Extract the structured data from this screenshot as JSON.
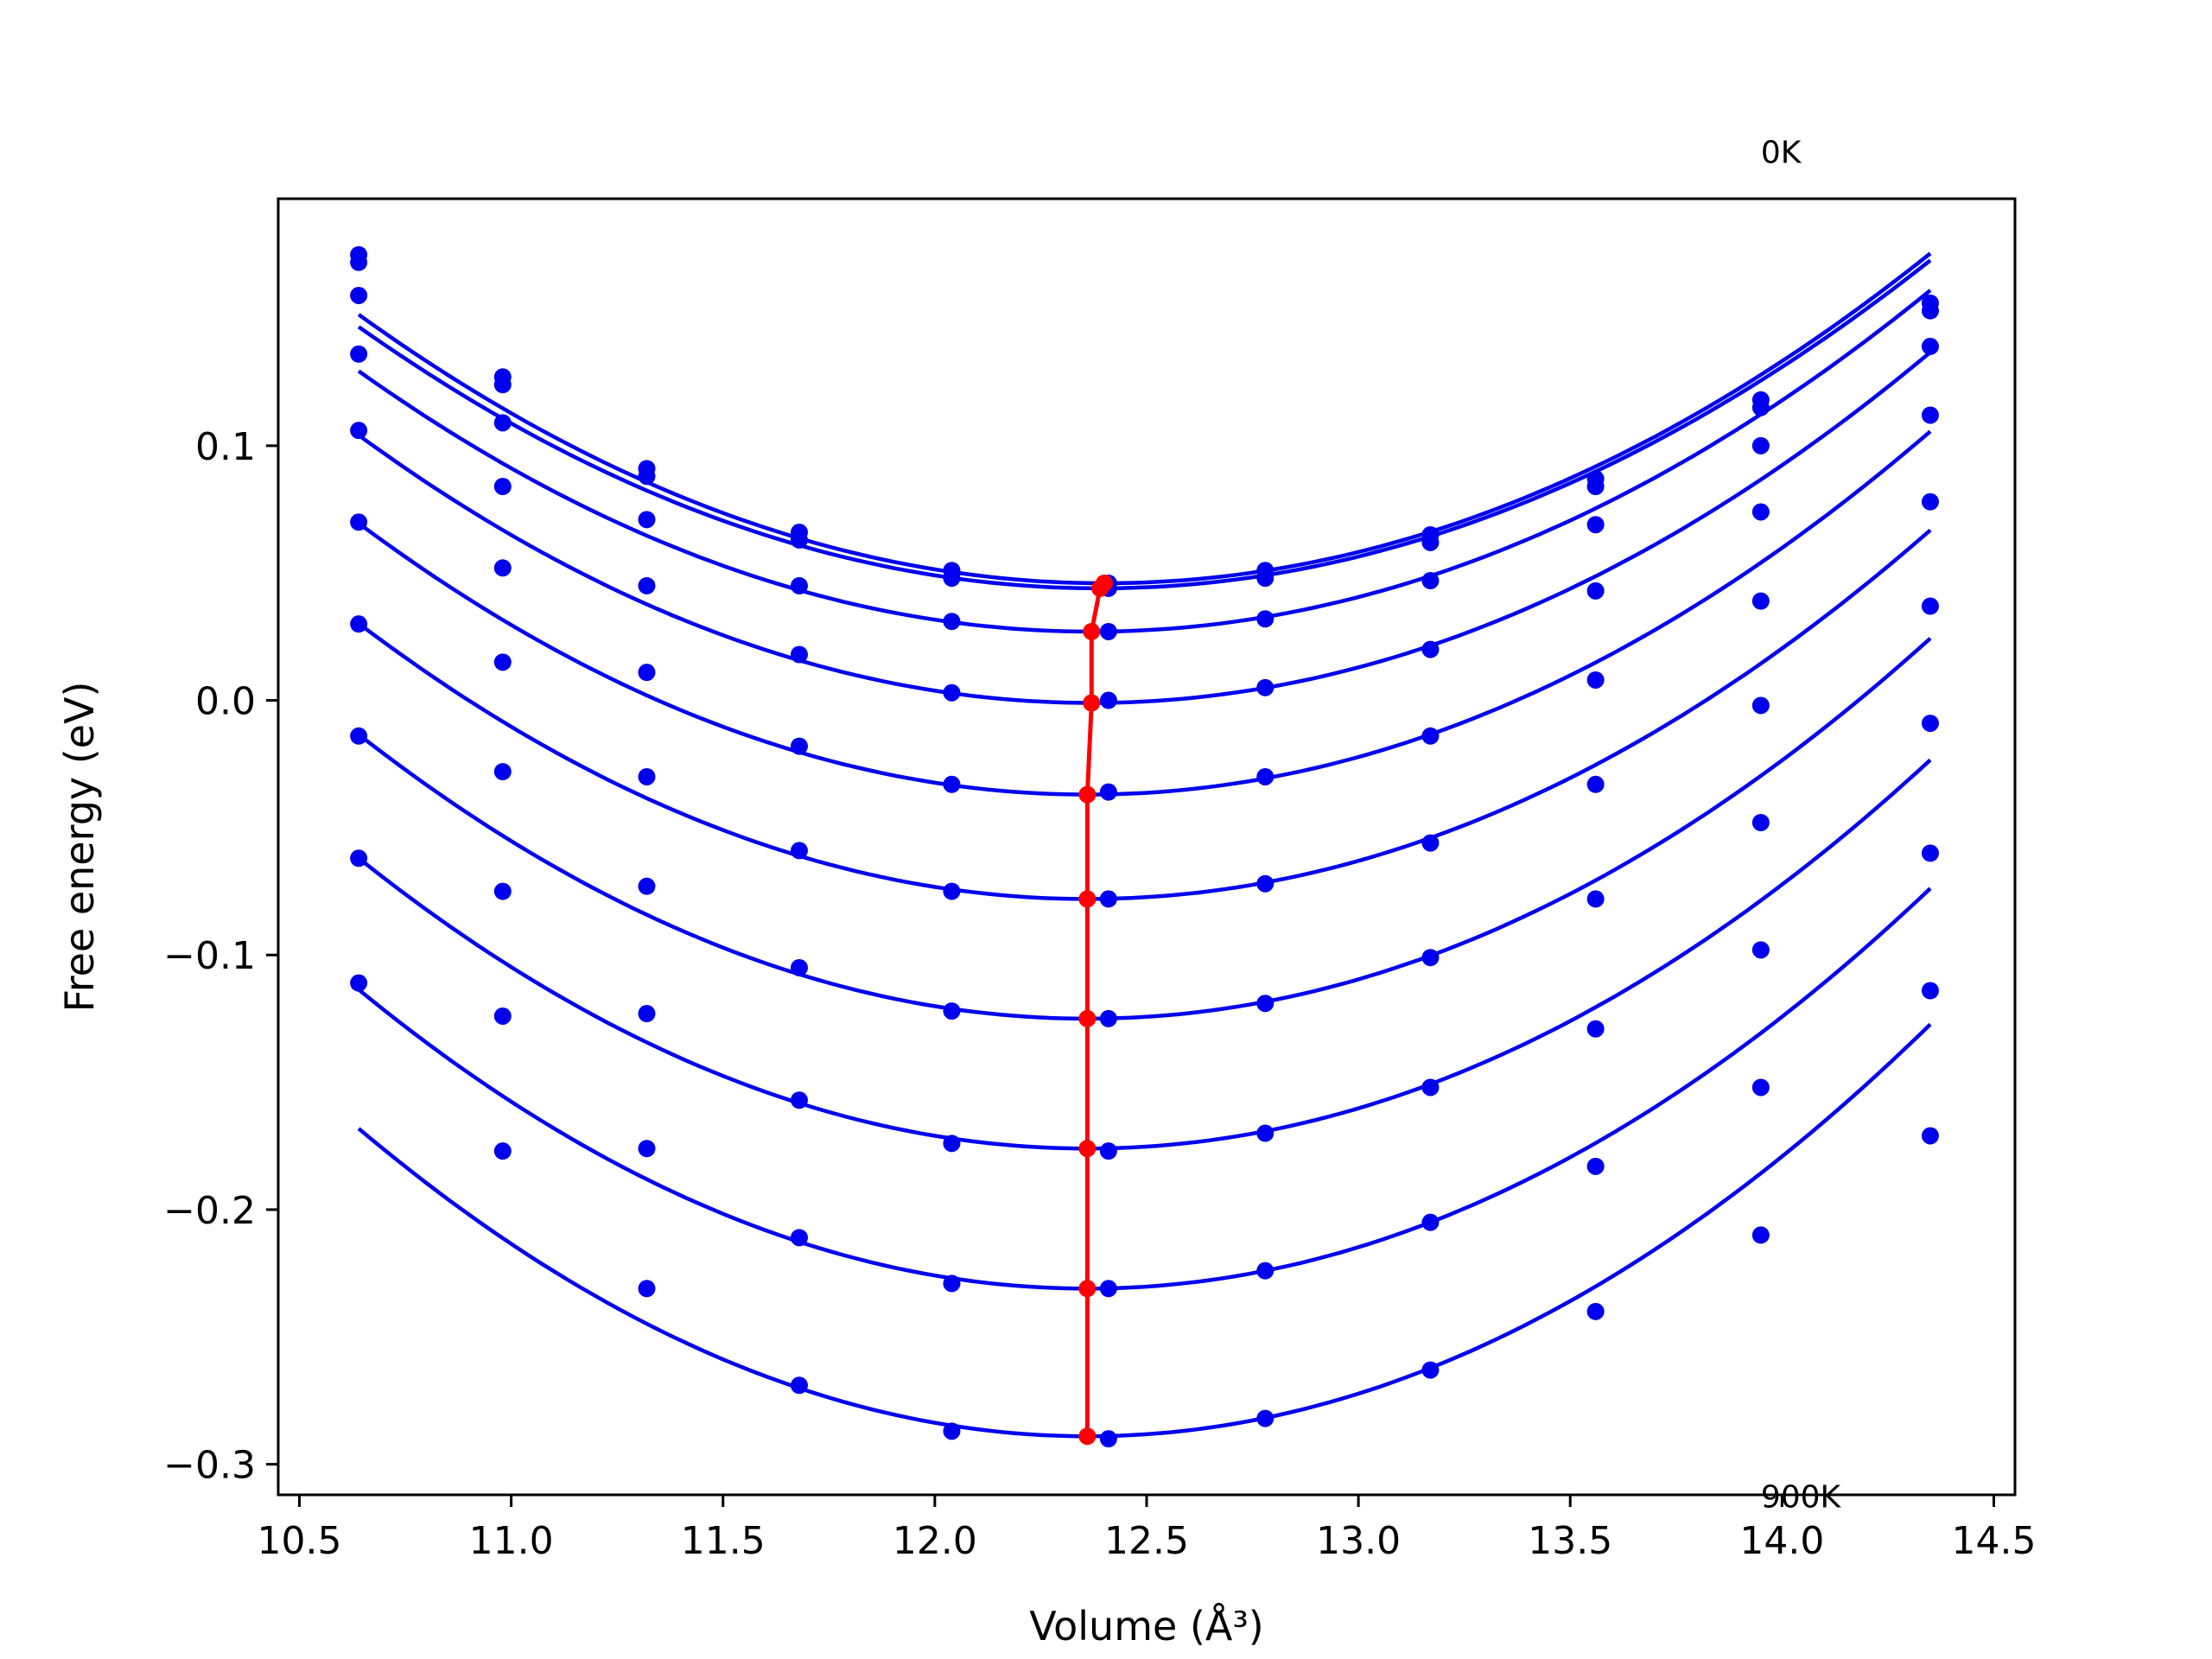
{
  "chart_data": {
    "type": "line",
    "xlabel": "Volume (Å³)",
    "ylabel": "Free energy (eV)",
    "xlim": [
      10.45,
      14.55
    ],
    "ylim": [
      -0.312,
      0.197
    ],
    "x_ticks": [
      10.5,
      11.0,
      11.5,
      12.0,
      12.5,
      13.0,
      13.5,
      14.0,
      14.5
    ],
    "x_tick_labels": [
      "10.5",
      "11.0",
      "11.5",
      "12.0",
      "12.5",
      "13.0",
      "13.5",
      "14.0",
      "14.5"
    ],
    "y_ticks": [
      -0.3,
      -0.2,
      -0.1,
      0.0,
      0.1
    ],
    "y_tick_labels": [
      "−0.3",
      "−0.2",
      "−0.1",
      "0.0",
      "0.1"
    ],
    "grid": false,
    "annotations": [
      {
        "text": "0K",
        "x": 13.95,
        "y": 0.211
      },
      {
        "text": "900K",
        "x": 13.95,
        "y": -0.317
      }
    ],
    "colors": {
      "curves": "#0000ee",
      "minimum_line": "#ff0000",
      "axes": "#000000"
    },
    "x": [
      10.64,
      10.98,
      11.32,
      11.68,
      12.04,
      12.41,
      12.78,
      13.17,
      13.56,
      13.95,
      14.35
    ],
    "series": [
      {
        "values": [
          0.175,
          0.127,
          0.091,
          0.066,
          0.051,
          0.046,
          0.051,
          0.065,
          0.087,
          0.118,
          0.156
        ],
        "min": [
          12.4,
          0.046
        ]
      },
      {
        "values": [
          0.172,
          0.124,
          0.088,
          0.063,
          0.048,
          0.044,
          0.048,
          0.062,
          0.084,
          0.115,
          0.153
        ],
        "min": [
          12.39,
          0.044
        ]
      },
      {
        "values": [
          0.159,
          0.109,
          0.071,
          0.045,
          0.031,
          0.027,
          0.032,
          0.047,
          0.069,
          0.1,
          0.139
        ],
        "min": [
          12.37,
          0.027
        ]
      },
      {
        "values": [
          0.136,
          0.084,
          0.045,
          0.018,
          0.003,
          0.0,
          0.005,
          0.02,
          0.043,
          0.074,
          0.112
        ],
        "min": [
          12.37,
          -0.001
        ]
      },
      {
        "values": [
          0.106,
          0.052,
          0.011,
          -0.018,
          -0.033,
          -0.036,
          -0.03,
          -0.014,
          0.008,
          0.039,
          0.078
        ],
        "min": [
          12.36,
          -0.037
        ]
      },
      {
        "values": [
          0.07,
          0.015,
          -0.03,
          -0.059,
          -0.075,
          -0.078,
          -0.072,
          -0.056,
          -0.033,
          -0.002,
          0.037
        ],
        "min": [
          12.36,
          -0.078
        ]
      },
      {
        "values": [
          0.03,
          -0.028,
          -0.073,
          -0.105,
          -0.122,
          -0.125,
          -0.119,
          -0.101,
          -0.078,
          -0.048,
          -0.009
        ],
        "min": [
          12.36,
          -0.125
        ]
      },
      {
        "values": [
          -0.014,
          -0.075,
          -0.123,
          -0.157,
          -0.174,
          -0.177,
          -0.17,
          -0.152,
          -0.129,
          -0.098,
          -0.06
        ],
        "min": [
          12.36,
          -0.176
        ]
      },
      {
        "values": [
          -0.062,
          -0.124,
          -0.176,
          -0.211,
          -0.229,
          -0.231,
          -0.224,
          -0.205,
          -0.183,
          -0.152,
          -0.114
        ],
        "min": [
          12.36,
          -0.231
        ]
      },
      {
        "values": [
          -0.111,
          -0.177,
          -0.231,
          -0.269,
          -0.287,
          -0.29,
          -0.282,
          -0.263,
          -0.24,
          -0.21,
          -0.171
        ],
        "min": [
          12.36,
          -0.289
        ]
      }
    ],
    "minimum_line": {
      "x": [
        12.4,
        12.39,
        12.37,
        12.37,
        12.36,
        12.36,
        12.36,
        12.36,
        12.36,
        12.36
      ],
      "y": [
        0.046,
        0.044,
        0.027,
        -0.001,
        -0.037,
        -0.078,
        -0.125,
        -0.176,
        -0.231,
        -0.289
      ]
    }
  }
}
